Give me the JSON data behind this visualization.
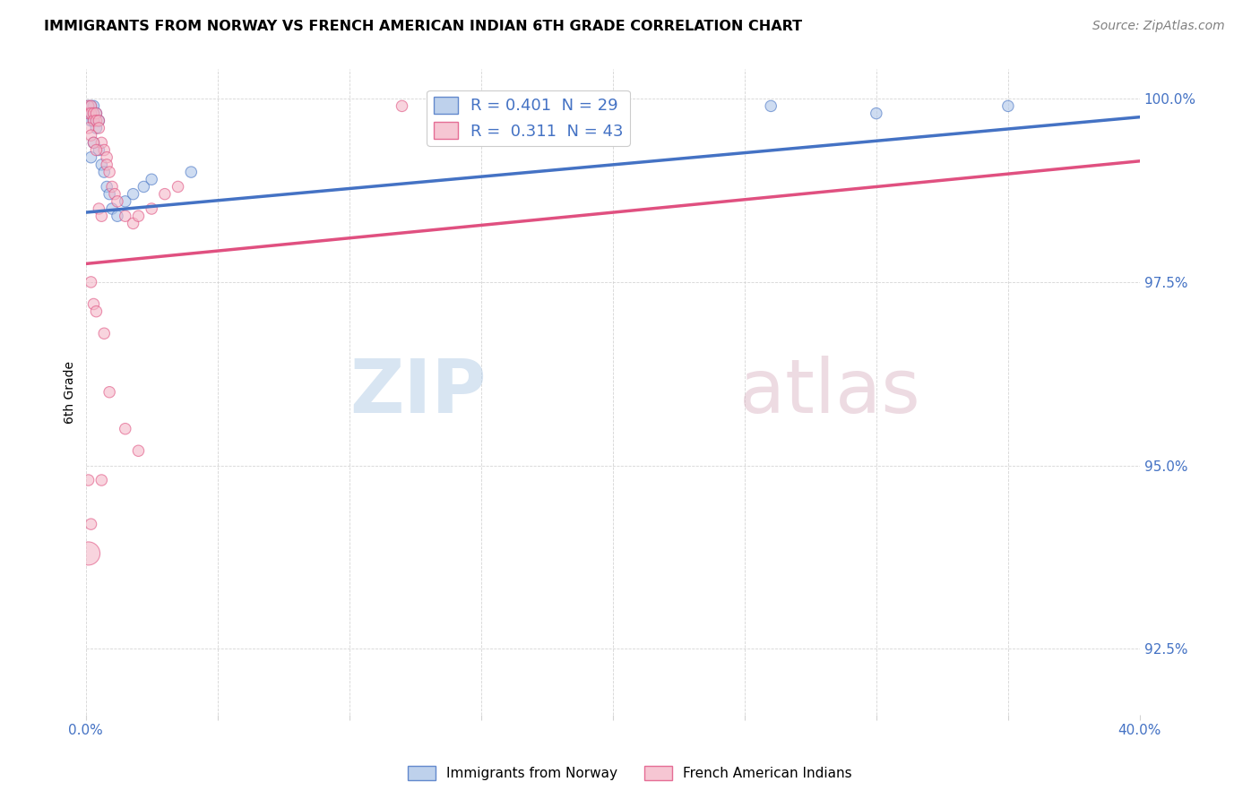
{
  "title": "IMMIGRANTS FROM NORWAY VS FRENCH AMERICAN INDIAN 6TH GRADE CORRELATION CHART",
  "source": "Source: ZipAtlas.com",
  "ylabel": "6th Grade",
  "xlim": [
    0.0,
    0.4
  ],
  "ylim": [
    0.916,
    1.004
  ],
  "xticks": [
    0.0,
    0.05,
    0.1,
    0.15,
    0.2,
    0.25,
    0.3,
    0.35,
    0.4
  ],
  "xticklabels": [
    "0.0%",
    "",
    "",
    "",
    "",
    "",
    "",
    "",
    "40.0%"
  ],
  "yticks": [
    0.925,
    0.95,
    0.975,
    1.0
  ],
  "yticklabels": [
    "92.5%",
    "95.0%",
    "97.5%",
    "100.0%"
  ],
  "norway_R": 0.401,
  "norway_N": 29,
  "french_R": 0.311,
  "french_N": 43,
  "norway_color": "#aec6e8",
  "french_color": "#f4b8c8",
  "norway_line_color": "#4472c4",
  "french_line_color": "#e05080",
  "watermark_zip": "ZIP",
  "watermark_atlas": "atlas",
  "legend_label_norway": "Immigrants from Norway",
  "legend_label_french": "French American Indians",
  "norway_x": [
    0.001,
    0.001,
    0.002,
    0.002,
    0.002,
    0.003,
    0.003,
    0.003,
    0.004,
    0.004,
    0.005,
    0.005,
    0.006,
    0.007,
    0.008,
    0.009,
    0.01,
    0.012,
    0.015,
    0.018,
    0.022,
    0.025,
    0.04,
    0.18,
    0.26,
    0.3,
    0.35,
    0.002,
    0.003
  ],
  "norway_y": [
    0.999,
    0.998,
    0.999,
    0.998,
    0.997,
    0.999,
    0.998,
    0.997,
    0.998,
    0.996,
    0.997,
    0.993,
    0.991,
    0.99,
    0.988,
    0.987,
    0.985,
    0.984,
    0.986,
    0.987,
    0.988,
    0.989,
    0.99,
    0.998,
    0.999,
    0.998,
    0.999,
    0.992,
    0.994
  ],
  "norway_sizes": [
    80,
    80,
    80,
    80,
    80,
    80,
    80,
    80,
    80,
    80,
    80,
    80,
    80,
    80,
    80,
    80,
    80,
    80,
    80,
    80,
    80,
    80,
    80,
    80,
    80,
    80,
    80,
    80,
    80
  ],
  "french_x": [
    0.001,
    0.001,
    0.002,
    0.002,
    0.003,
    0.003,
    0.004,
    0.004,
    0.005,
    0.005,
    0.006,
    0.007,
    0.008,
    0.008,
    0.009,
    0.01,
    0.011,
    0.012,
    0.015,
    0.018,
    0.02,
    0.025,
    0.03,
    0.035,
    0.001,
    0.002,
    0.003,
    0.004,
    0.005,
    0.006,
    0.002,
    0.003,
    0.004,
    0.007,
    0.009,
    0.015,
    0.02,
    0.001,
    0.002,
    0.001,
    0.006,
    0.12,
    0.15
  ],
  "french_y": [
    0.999,
    0.998,
    0.999,
    0.998,
    0.998,
    0.997,
    0.998,
    0.997,
    0.997,
    0.996,
    0.994,
    0.993,
    0.992,
    0.991,
    0.99,
    0.988,
    0.987,
    0.986,
    0.984,
    0.983,
    0.984,
    0.985,
    0.987,
    0.988,
    0.996,
    0.995,
    0.994,
    0.993,
    0.985,
    0.984,
    0.975,
    0.972,
    0.971,
    0.968,
    0.96,
    0.955,
    0.952,
    0.948,
    0.942,
    0.938,
    0.948,
    0.999,
    0.999
  ],
  "french_sizes": [
    80,
    80,
    80,
    80,
    80,
    80,
    80,
    80,
    80,
    80,
    80,
    80,
    80,
    80,
    80,
    80,
    80,
    80,
    80,
    80,
    80,
    80,
    80,
    80,
    80,
    80,
    80,
    80,
    80,
    80,
    80,
    80,
    80,
    80,
    80,
    80,
    80,
    80,
    80,
    350,
    80,
    80,
    80
  ],
  "norway_trend_x": [
    0.0,
    0.4
  ],
  "norway_trend_y": [
    0.9845,
    0.9975
  ],
  "french_trend_x": [
    0.0,
    0.4
  ],
  "french_trend_y": [
    0.9775,
    0.9915
  ]
}
